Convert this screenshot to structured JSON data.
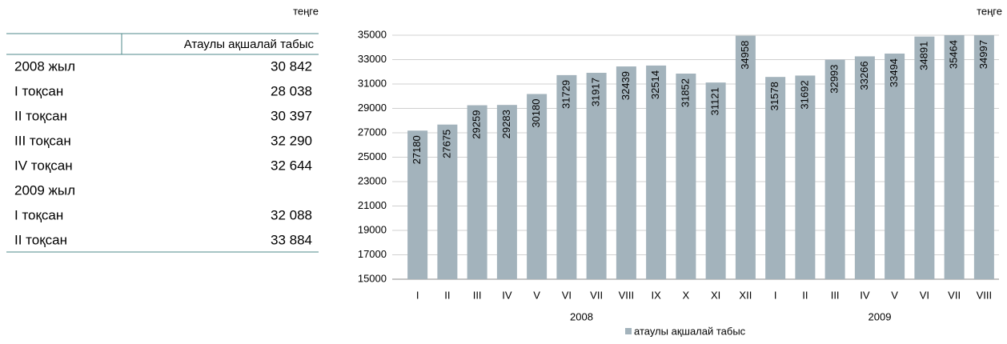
{
  "table": {
    "unit": "теңге",
    "header": "Атаулы ақшалай табыс",
    "rows": [
      [
        "2008 жыл",
        "30 842"
      ],
      [
        "I тоқсан",
        "28 038"
      ],
      [
        "II тоқсан",
        "30 397"
      ],
      [
        "III тоқсан",
        "32 290"
      ],
      [
        "IV тоқсан",
        "32 644"
      ],
      [
        "2009 жыл"
      ],
      [
        "I тоқсан",
        "32 088"
      ],
      [
        "II тоқсан",
        "33 884"
      ]
    ]
  },
  "chart_data": {
    "type": "bar",
    "unit": "теңге",
    "categories": [
      "I",
      "II",
      "III",
      "IV",
      "V",
      "VI",
      "VII",
      "VIII",
      "IX",
      "X",
      "XI",
      "XII",
      "I",
      "II",
      "III",
      "IV",
      "V",
      "VI",
      "VII",
      "VIII"
    ],
    "groups": [
      {
        "label": "2008",
        "count": 12
      },
      {
        "label": "2009",
        "count": 8
      }
    ],
    "series": [
      {
        "name": "атаулы ақшалай табыс",
        "color": "#a3b3bc",
        "values": [
          27180,
          27675,
          29259,
          29283,
          30180,
          31729,
          31917,
          32439,
          32514,
          31852,
          31121,
          34958,
          31578,
          31692,
          32993,
          33266,
          33494,
          34891,
          35464,
          34997
        ]
      }
    ],
    "ylim": [
      15000,
      35000
    ],
    "yticks": [
      15000,
      17000,
      19000,
      21000,
      23000,
      25000,
      27000,
      29000,
      31000,
      33000,
      35000
    ],
    "grid": true,
    "legend": "bottom"
  }
}
